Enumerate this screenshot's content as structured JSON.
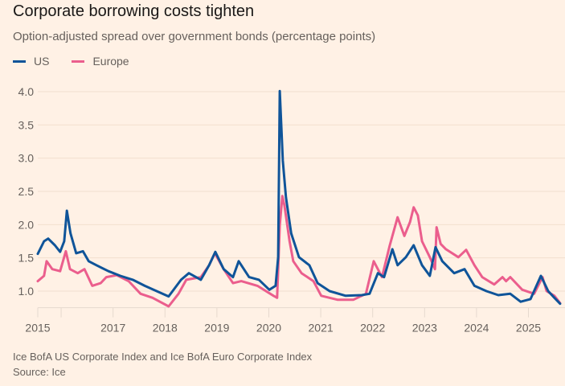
{
  "chart_data": {
    "type": "line",
    "title": "Corporate borrowing costs tighten",
    "subtitle": "Option-adjusted spread over government bonds (percentage points)",
    "xlabel": "",
    "ylabel": "",
    "xlim": [
      2015.55,
      2025.65
    ],
    "ylim": [
      0.75,
      4.0
    ],
    "yticks": [
      1.0,
      1.5,
      2.0,
      2.5,
      3.0,
      3.5,
      4.0
    ],
    "ytick_labels": [
      "1.0",
      "1.5",
      "2.0",
      "2.5",
      "3.0",
      "3.5",
      "4.0"
    ],
    "xticks": [
      2016,
      2017,
      2018,
      2019,
      2020,
      2021,
      2022,
      2023,
      2024,
      2025
    ],
    "xtick_labels": [
      {
        "label": "2015",
        "t": 2015.55
      },
      {
        "label": "2017",
        "t": 2017
      },
      {
        "label": "2018",
        "t": 2018
      },
      {
        "label": "2019",
        "t": 2019
      },
      {
        "label": "2020",
        "t": 2020
      },
      {
        "label": "2021",
        "t": 2021
      },
      {
        "label": "2022",
        "t": 2022
      },
      {
        "label": "2023",
        "t": 2023
      },
      {
        "label": "2024",
        "t": 2024
      },
      {
        "label": "2025",
        "t": 2025
      }
    ],
    "grid": true,
    "legend_position": "top-left",
    "series": [
      {
        "name": "US",
        "color": "#0f5499",
        "points": [
          [
            2015.55,
            1.56
          ],
          [
            2015.67,
            1.75
          ],
          [
            2015.75,
            1.79
          ],
          [
            2015.88,
            1.69
          ],
          [
            2015.98,
            1.59
          ],
          [
            2016.06,
            1.75
          ],
          [
            2016.11,
            2.21
          ],
          [
            2016.18,
            1.87
          ],
          [
            2016.29,
            1.57
          ],
          [
            2016.42,
            1.6
          ],
          [
            2016.53,
            1.45
          ],
          [
            2016.68,
            1.39
          ],
          [
            2016.91,
            1.3
          ],
          [
            2017.14,
            1.23
          ],
          [
            2017.38,
            1.17
          ],
          [
            2017.61,
            1.08
          ],
          [
            2017.84,
            1.0
          ],
          [
            2018.07,
            0.92
          ],
          [
            2018.31,
            1.17
          ],
          [
            2018.46,
            1.27
          ],
          [
            2018.69,
            1.17
          ],
          [
            2018.85,
            1.39
          ],
          [
            2018.97,
            1.59
          ],
          [
            2019.13,
            1.33
          ],
          [
            2019.31,
            1.21
          ],
          [
            2019.42,
            1.45
          ],
          [
            2019.62,
            1.21
          ],
          [
            2019.81,
            1.17
          ],
          [
            2020.01,
            1.02
          ],
          [
            2020.13,
            1.08
          ],
          [
            2020.18,
            1.51
          ],
          [
            2020.21,
            4.01
          ],
          [
            2020.27,
            2.96
          ],
          [
            2020.33,
            2.41
          ],
          [
            2020.43,
            1.87
          ],
          [
            2020.58,
            1.51
          ],
          [
            2020.78,
            1.39
          ],
          [
            2020.94,
            1.12
          ],
          [
            2021.17,
            1.0
          ],
          [
            2021.48,
            0.93
          ],
          [
            2021.79,
            0.94
          ],
          [
            2021.94,
            0.96
          ],
          [
            2022.1,
            1.27
          ],
          [
            2022.22,
            1.21
          ],
          [
            2022.38,
            1.63
          ],
          [
            2022.48,
            1.39
          ],
          [
            2022.64,
            1.51
          ],
          [
            2022.79,
            1.69
          ],
          [
            2022.95,
            1.39
          ],
          [
            2023.1,
            1.23
          ],
          [
            2023.21,
            1.66
          ],
          [
            2023.34,
            1.45
          ],
          [
            2023.57,
            1.27
          ],
          [
            2023.77,
            1.33
          ],
          [
            2023.96,
            1.08
          ],
          [
            2024.19,
            1.0
          ],
          [
            2024.42,
            0.94
          ],
          [
            2024.65,
            0.96
          ],
          [
            2024.85,
            0.84
          ],
          [
            2025.04,
            0.88
          ],
          [
            2025.24,
            1.23
          ],
          [
            2025.38,
            1.0
          ],
          [
            2025.5,
            0.9
          ],
          [
            2025.61,
            0.81
          ]
        ]
      },
      {
        "name": "Europe",
        "color": "#eb5e8d",
        "points": [
          [
            2015.55,
            1.15
          ],
          [
            2015.67,
            1.23
          ],
          [
            2015.72,
            1.45
          ],
          [
            2015.83,
            1.33
          ],
          [
            2015.98,
            1.3
          ],
          [
            2016.09,
            1.6
          ],
          [
            2016.17,
            1.33
          ],
          [
            2016.32,
            1.27
          ],
          [
            2016.45,
            1.33
          ],
          [
            2016.6,
            1.08
          ],
          [
            2016.76,
            1.12
          ],
          [
            2016.87,
            1.21
          ],
          [
            2017.07,
            1.24
          ],
          [
            2017.3,
            1.15
          ],
          [
            2017.53,
            0.96
          ],
          [
            2017.76,
            0.9
          ],
          [
            2018.07,
            0.77
          ],
          [
            2018.26,
            0.96
          ],
          [
            2018.41,
            1.17
          ],
          [
            2018.69,
            1.21
          ],
          [
            2018.85,
            1.39
          ],
          [
            2018.96,
            1.57
          ],
          [
            2019.13,
            1.33
          ],
          [
            2019.31,
            1.12
          ],
          [
            2019.47,
            1.15
          ],
          [
            2019.78,
            1.08
          ],
          [
            2020.09,
            0.93
          ],
          [
            2020.16,
            0.9
          ],
          [
            2020.21,
            1.99
          ],
          [
            2020.26,
            2.43
          ],
          [
            2020.3,
            2.29
          ],
          [
            2020.4,
            1.75
          ],
          [
            2020.47,
            1.45
          ],
          [
            2020.63,
            1.27
          ],
          [
            2020.86,
            1.15
          ],
          [
            2021.01,
            0.93
          ],
          [
            2021.32,
            0.87
          ],
          [
            2021.63,
            0.87
          ],
          [
            2021.87,
            0.96
          ],
          [
            2022.02,
            1.45
          ],
          [
            2022.18,
            1.21
          ],
          [
            2022.33,
            1.69
          ],
          [
            2022.48,
            2.11
          ],
          [
            2022.61,
            1.83
          ],
          [
            2022.72,
            2.04
          ],
          [
            2022.79,
            2.26
          ],
          [
            2022.87,
            2.14
          ],
          [
            2022.95,
            1.75
          ],
          [
            2023.1,
            1.51
          ],
          [
            2023.2,
            1.33
          ],
          [
            2023.23,
            1.96
          ],
          [
            2023.31,
            1.71
          ],
          [
            2023.41,
            1.63
          ],
          [
            2023.65,
            1.51
          ],
          [
            2023.8,
            1.62
          ],
          [
            2023.96,
            1.39
          ],
          [
            2024.11,
            1.21
          ],
          [
            2024.34,
            1.1
          ],
          [
            2024.5,
            1.21
          ],
          [
            2024.57,
            1.15
          ],
          [
            2024.65,
            1.21
          ],
          [
            2024.88,
            1.02
          ],
          [
            2025.11,
            0.96
          ],
          [
            2025.27,
            1.21
          ],
          [
            2025.35,
            1.0
          ],
          [
            2025.5,
            0.93
          ],
          [
            2025.61,
            0.82
          ]
        ]
      }
    ]
  },
  "footer": {
    "note": "Ice BofA US Corporate Index and Ice BofA Euro Corporate Index",
    "source": "Source: Ice"
  }
}
